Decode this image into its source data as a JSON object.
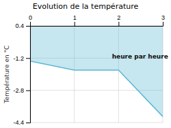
{
  "chart_data": {
    "type": "area",
    "title": "Evolution de la température",
    "ylabel": "Température en °C",
    "x": [
      0,
      1,
      2,
      3
    ],
    "series": [
      {
        "values": [
          -1.35,
          -1.8,
          -1.8,
          -4.1
        ],
        "color": "#5bb8d4"
      }
    ],
    "xlim": [
      0,
      3
    ],
    "ylim": [
      -4.4,
      0.4
    ],
    "xticks": [
      0,
      1,
      2,
      3
    ],
    "yticks": [
      0.4,
      -1.2,
      -2.8,
      -4.4
    ],
    "grid": true,
    "annotations": [
      {
        "text": "heure par heure",
        "x": 1.85,
        "y": -1.0
      }
    ]
  }
}
